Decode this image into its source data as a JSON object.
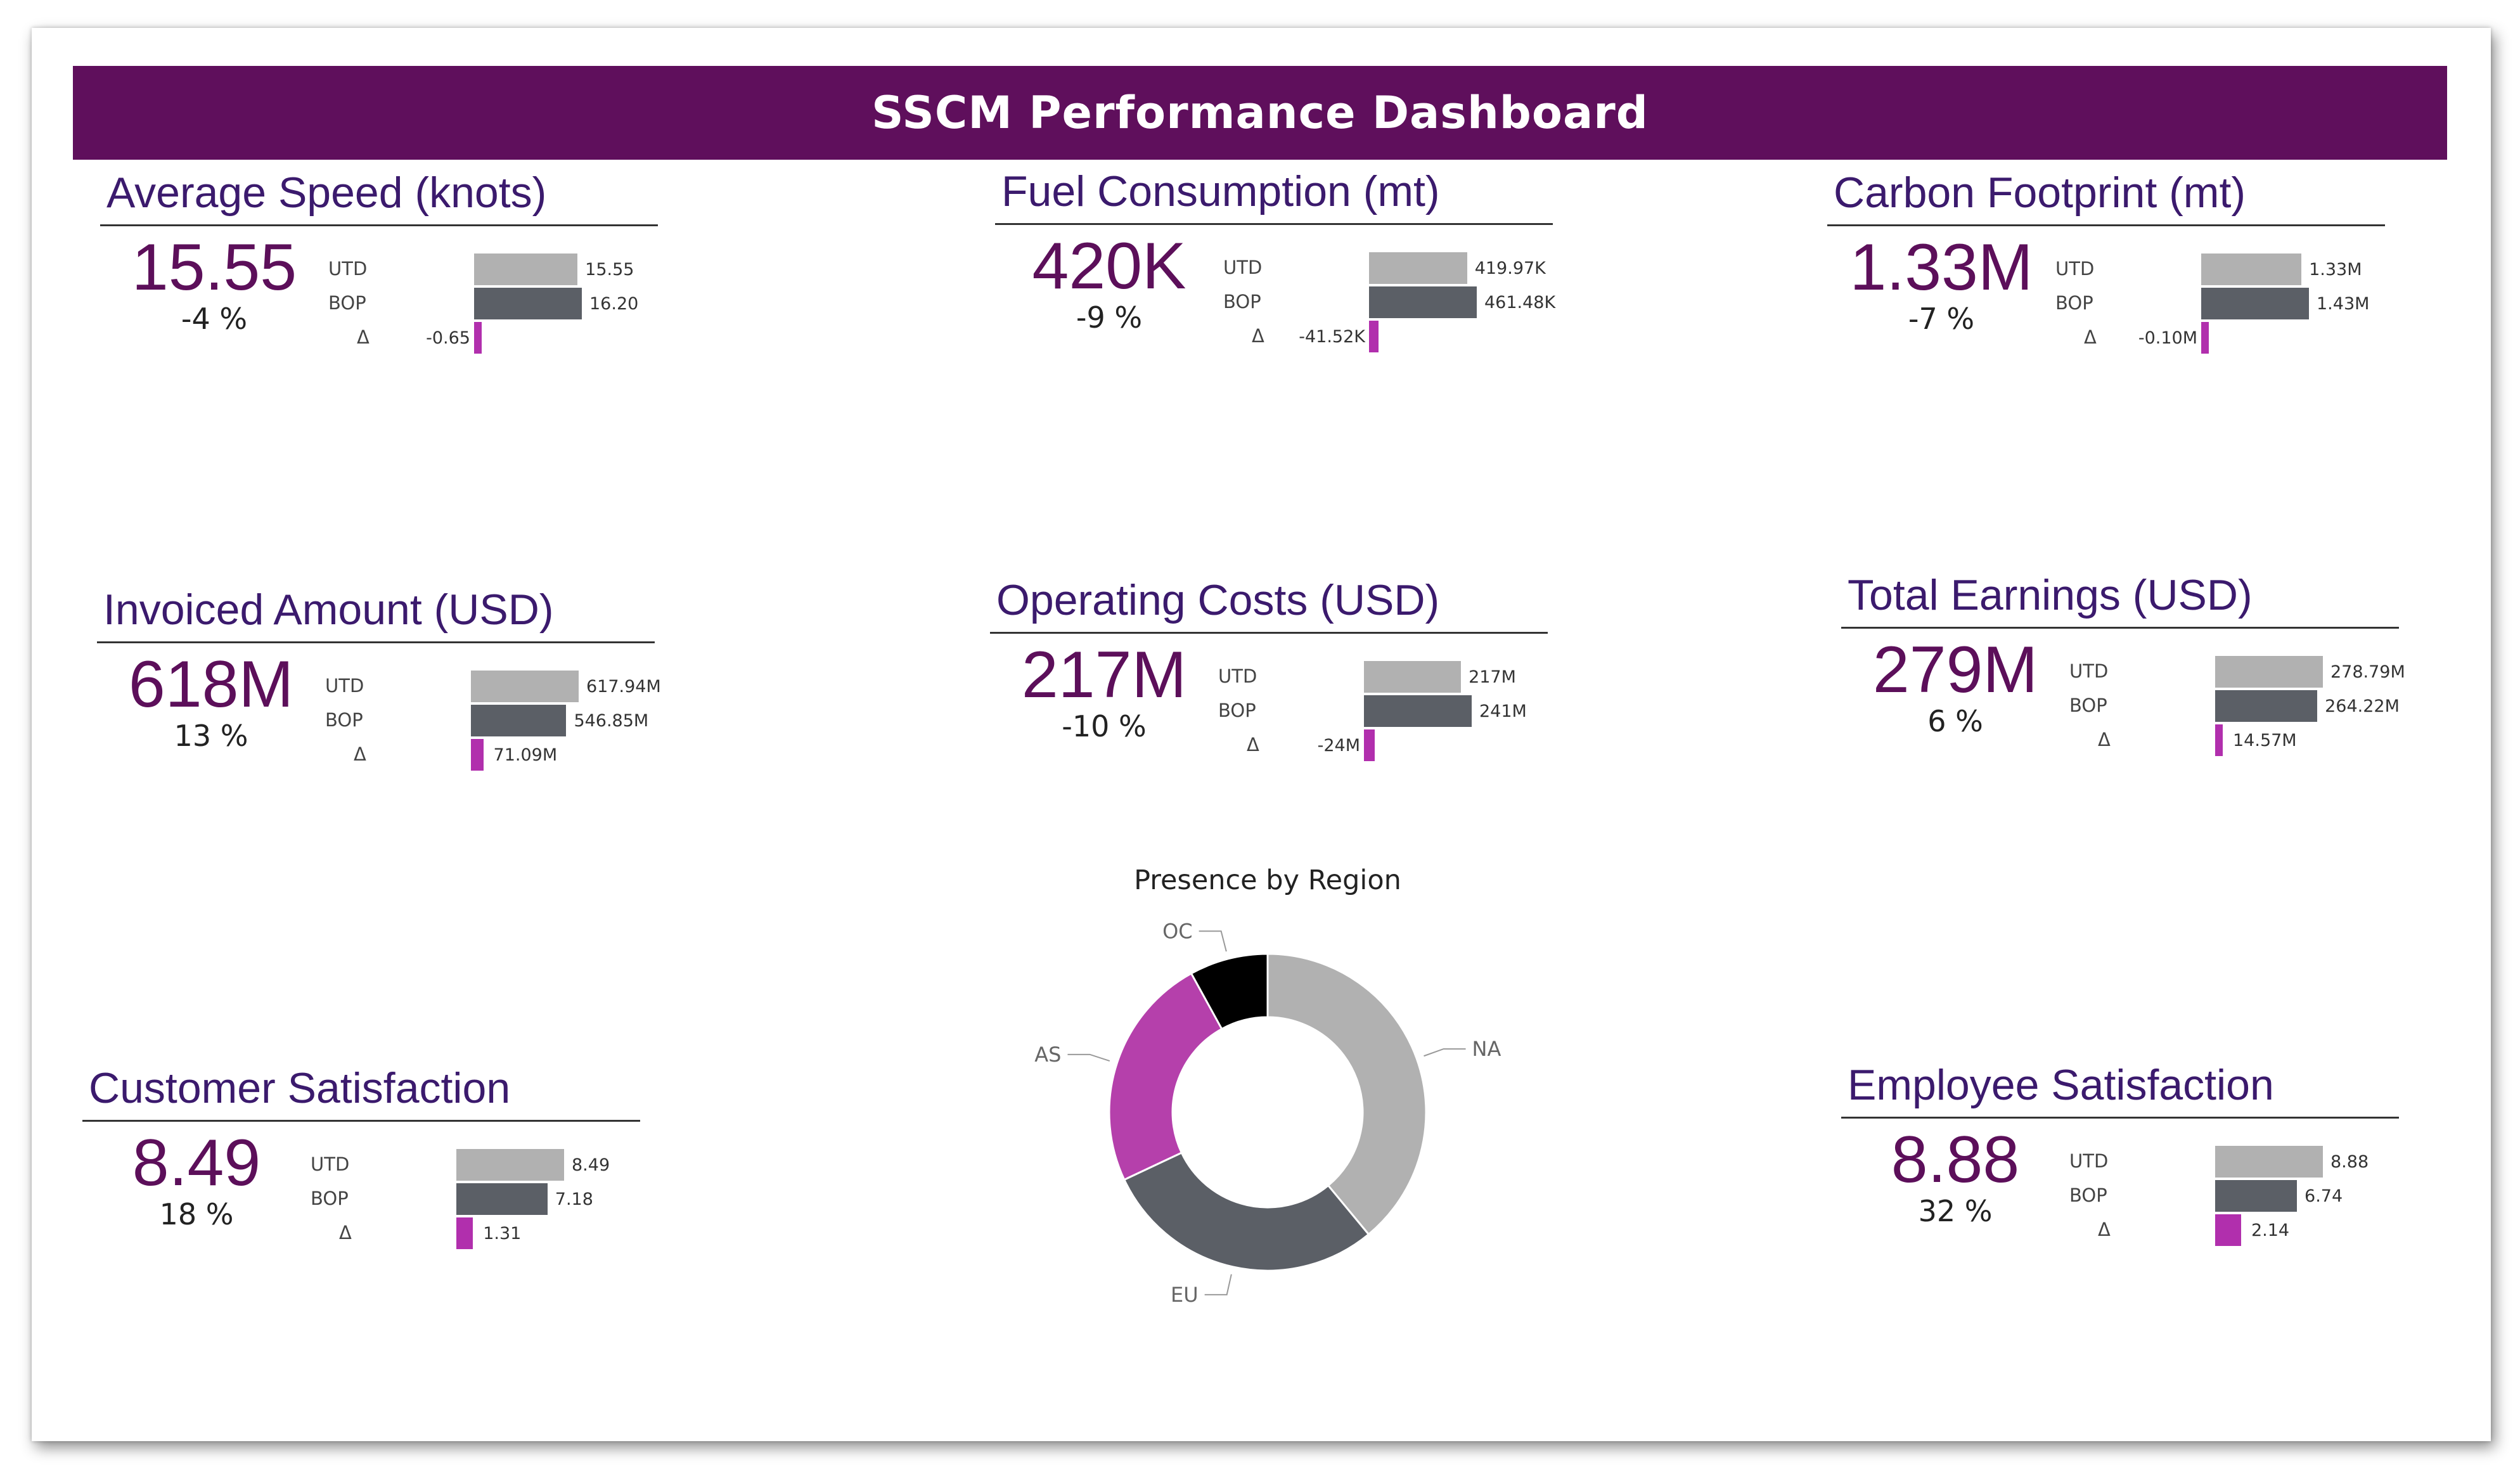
{
  "title": "SSCM Performance Dashboard",
  "colors": {
    "header": "#5f0f5c",
    "kpi_value": "#5c0f5a",
    "utd_bar": "#b1b1b1",
    "bop_bar": "#5b5f66",
    "delta_bar": "#b12fad"
  },
  "kpis": {
    "avg_speed": {
      "title": "Average Speed (knots)",
      "value": "15.55",
      "pct": "-4 %",
      "utd_label": "UTD",
      "bop_label": "BOP",
      "delta_label": "Δ",
      "utd_text": "15.55",
      "bop_text": "16.20",
      "delta_text": "-0.65",
      "utd": 15.55,
      "bop": 16.2,
      "delta": -0.65
    },
    "fuel": {
      "title": "Fuel Consumption (mt)",
      "value": "420K",
      "pct": "-9 %",
      "utd_label": "UTD",
      "bop_label": "BOP",
      "delta_label": "Δ",
      "utd_text": "419.97K",
      "bop_text": "461.48K",
      "delta_text": "-41.52K",
      "utd": 419.97,
      "bop": 461.48,
      "delta": -41.52
    },
    "carbon": {
      "title": "Carbon Footprint (mt)",
      "value": "1.33M",
      "pct": "-7 %",
      "utd_label": "UTD",
      "bop_label": "BOP",
      "delta_label": "Δ",
      "utd_text": "1.33M",
      "bop_text": "1.43M",
      "delta_text": "-0.10M",
      "utd": 1.33,
      "bop": 1.43,
      "delta": -0.1
    },
    "invoiced": {
      "title": "Invoiced Amount (USD)",
      "value": "618M",
      "pct": "13 %",
      "utd_label": "UTD",
      "bop_label": "BOP",
      "delta_label": "Δ",
      "utd_text": "617.94M",
      "bop_text": "546.85M",
      "delta_text": "71.09M",
      "utd": 617.94,
      "bop": 546.85,
      "delta": 71.09
    },
    "opcost": {
      "title": "Operating Costs (USD)",
      "value": "217M",
      "pct": "-10 %",
      "utd_label": "UTD",
      "bop_label": "BOP",
      "delta_label": "Δ",
      "utd_text": "217M",
      "bop_text": "241M",
      "delta_text": "-24M",
      "utd": 217,
      "bop": 241,
      "delta": -24
    },
    "earnings": {
      "title": "Total Earnings (USD)",
      "value": "279M",
      "pct": "6 %",
      "utd_label": "UTD",
      "bop_label": "BOP",
      "delta_label": "Δ",
      "utd_text": "278.79M",
      "bop_text": "264.22M",
      "delta_text": "14.57M",
      "utd": 278.79,
      "bop": 264.22,
      "delta": 14.57
    },
    "custsat": {
      "title": "Customer Satisfaction",
      "value": "8.49",
      "pct": "18 %",
      "utd_label": "UTD",
      "bop_label": "BOP",
      "delta_label": "Δ",
      "utd_text": "8.49",
      "bop_text": "7.18",
      "delta_text": "1.31",
      "utd": 8.49,
      "bop": 7.18,
      "delta": 1.31
    },
    "empsat": {
      "title": "Employee Satisfaction",
      "value": "8.88",
      "pct": "32 %",
      "utd_label": "UTD",
      "bop_label": "BOP",
      "delta_label": "Δ",
      "utd_text": "8.88",
      "bop_text": "6.74",
      "delta_text": "2.14",
      "utd": 8.88,
      "bop": 6.74,
      "delta": 2.14
    }
  },
  "chart_data": {
    "type": "pie",
    "title": "Presence by Region",
    "categories": [
      "NA",
      "EU",
      "AS",
      "OC"
    ],
    "values": [
      39,
      29,
      24,
      8
    ],
    "colors": [
      "#b1b1b1",
      "#5b5f66",
      "#b540ab",
      "#000000"
    ]
  }
}
